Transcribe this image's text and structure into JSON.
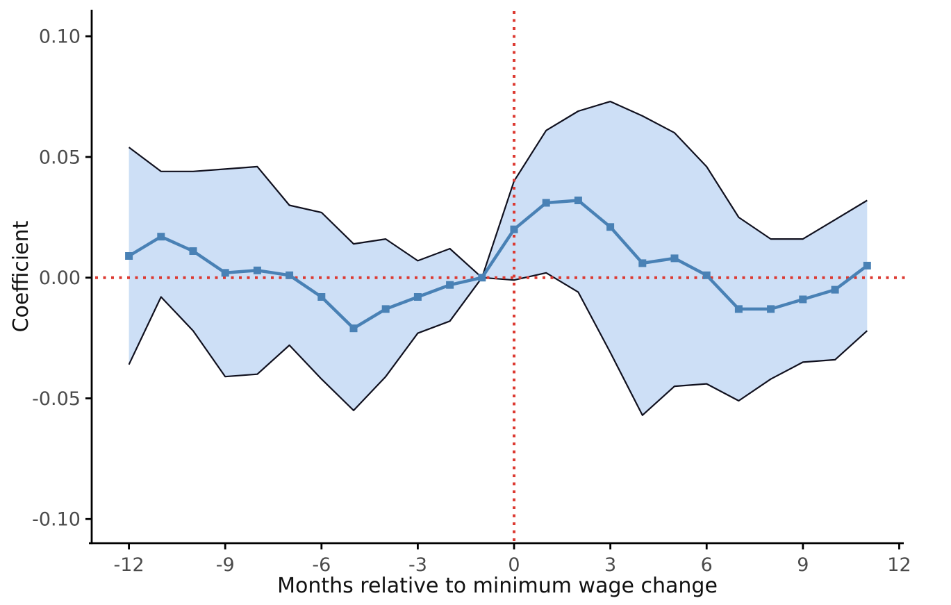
{
  "figure": {
    "background": "#ffffff"
  },
  "chart_data": {
    "type": "line",
    "subtype": "event-study-with-confidence-band",
    "title": "",
    "xlabel": "Months relative to minimum wage change",
    "ylabel": "Coefficient",
    "x": [
      -12,
      -11,
      -10,
      -9,
      -8,
      -7,
      -6,
      -5,
      -4,
      -3,
      -2,
      -1,
      0,
      1,
      2,
      3,
      4,
      5,
      6,
      7,
      8,
      9,
      10,
      11
    ],
    "series": [
      {
        "name": "coefficient",
        "values": [
          0.009,
          0.017,
          0.011,
          0.002,
          0.003,
          0.001,
          -0.008,
          -0.021,
          -0.013,
          -0.008,
          -0.003,
          0.0,
          0.02,
          0.031,
          0.032,
          0.021,
          0.006,
          0.008,
          0.001,
          -0.013,
          -0.013,
          -0.009,
          -0.005,
          0.005
        ]
      },
      {
        "name": "ci_upper",
        "values": [
          0.054,
          0.044,
          0.044,
          0.045,
          0.046,
          0.03,
          0.027,
          0.014,
          0.016,
          0.007,
          0.012,
          0.0,
          0.04,
          0.061,
          0.069,
          0.073,
          0.067,
          0.06,
          0.046,
          0.025,
          0.016,
          0.016,
          0.024,
          0.032
        ]
      },
      {
        "name": "ci_lower",
        "values": [
          -0.036,
          -0.008,
          -0.022,
          -0.041,
          -0.04,
          -0.028,
          -0.042,
          -0.055,
          -0.041,
          -0.023,
          -0.018,
          0.0,
          -0.001,
          0.002,
          -0.006,
          -0.031,
          -0.057,
          -0.045,
          -0.044,
          -0.051,
          -0.042,
          -0.035,
          -0.034,
          -0.022
        ]
      }
    ],
    "x_ticks": {
      "values": [
        -12,
        -9,
        -6,
        -3,
        0,
        3,
        6,
        9,
        12
      ],
      "labels": [
        "-12",
        "-9",
        "-6",
        "-3",
        "0",
        "3",
        "6",
        "9",
        "12"
      ]
    },
    "y_ticks": {
      "values": [
        0.1,
        0.05,
        0.0,
        -0.05,
        -0.1
      ],
      "labels": [
        "0.10",
        "0.05",
        "0.00",
        "-0.05",
        "-0.10"
      ]
    },
    "xlim": [
      -13.16,
      12.12
    ],
    "ylim": [
      -0.11,
      0.111
    ],
    "reference_lines": {
      "horizontal_y": 0,
      "vertical_x": 0,
      "style": "dotted"
    },
    "grid": false,
    "legend": false,
    "marker": {
      "shape": "square",
      "size": 11
    },
    "colors": {
      "line": "#4981b5",
      "marker": "#4981b5",
      "band_fill": "#cddff6",
      "band_edge": "#10101e",
      "reference": "#dc3a32",
      "axis": "#000000",
      "tick_label": "#4a4a4a",
      "axis_title": "#111111"
    }
  }
}
